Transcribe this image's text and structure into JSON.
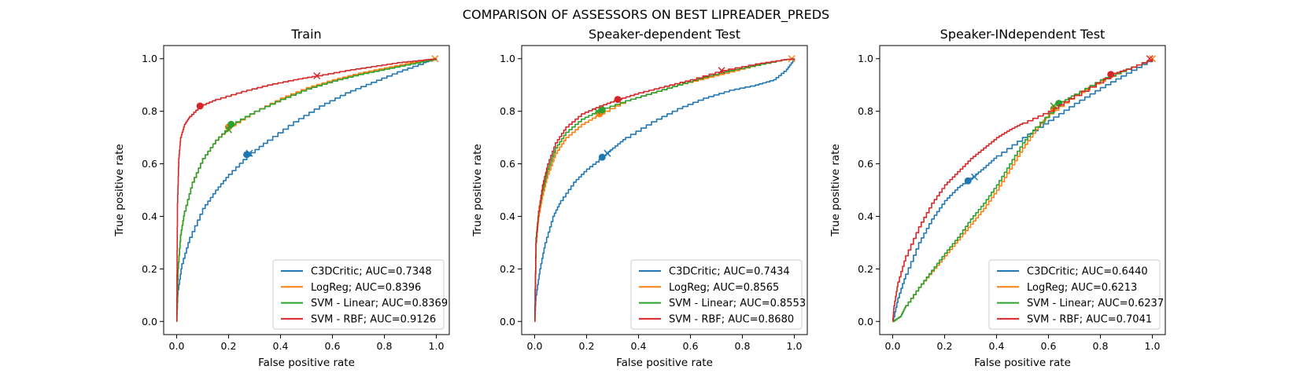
{
  "figure": {
    "suptitle": "COMPARISON OF ASSESSORS ON BEST LIPREADER_PREDS",
    "series_colors": [
      "#1f77b4",
      "#ff7f0e",
      "#2ca02c",
      "#d62728"
    ],
    "x_ticks": [
      "0.0",
      "0.2",
      "0.4",
      "0.6",
      "0.8",
      "1.0"
    ],
    "y_ticks": [
      "0.0",
      "0.2",
      "0.4",
      "0.6",
      "0.8",
      "1.0"
    ]
  },
  "chart_data": [
    {
      "type": "line",
      "title": "Train",
      "xlabel": "False positive rate",
      "ylabel": "True positive rate",
      "xlim": [
        -0.05,
        1.05
      ],
      "ylim": [
        -0.05,
        1.05
      ],
      "legend_position": "lower right",
      "series": [
        {
          "name": "C3DCritic; AUC=0.7348",
          "x": [
            0,
            0.005,
            0.02,
            0.05,
            0.1,
            0.15,
            0.2,
            0.27,
            0.35,
            0.45,
            0.55,
            0.65,
            0.75,
            0.85,
            0.95,
            1.0
          ],
          "y": [
            0,
            0.12,
            0.22,
            0.32,
            0.43,
            0.5,
            0.56,
            0.63,
            0.69,
            0.76,
            0.82,
            0.87,
            0.91,
            0.95,
            0.985,
            1.0
          ],
          "dot": [
            0.27,
            0.635
          ],
          "cross": [
            0.28,
            0.64
          ]
        },
        {
          "name": "LogReg; AUC=0.8396",
          "x": [
            0,
            0.005,
            0.015,
            0.03,
            0.06,
            0.1,
            0.15,
            0.21,
            0.3,
            0.4,
            0.5,
            0.6,
            0.7,
            0.8,
            0.9,
            1.0
          ],
          "y": [
            0,
            0.2,
            0.33,
            0.42,
            0.53,
            0.62,
            0.69,
            0.745,
            0.8,
            0.85,
            0.89,
            0.92,
            0.945,
            0.965,
            0.985,
            1.0
          ],
          "dot": [
            0.2,
            0.74
          ],
          "cross": [
            0.995,
            1.0
          ]
        },
        {
          "name": "SVM - Linear; AUC=0.8369",
          "x": [
            0,
            0.005,
            0.015,
            0.03,
            0.06,
            0.1,
            0.15,
            0.21,
            0.3,
            0.4,
            0.5,
            0.6,
            0.7,
            0.8,
            0.9,
            1.0
          ],
          "y": [
            0,
            0.2,
            0.33,
            0.42,
            0.53,
            0.62,
            0.69,
            0.75,
            0.8,
            0.845,
            0.885,
            0.915,
            0.94,
            0.96,
            0.98,
            1.0
          ],
          "dot": [
            0.21,
            0.75
          ],
          "cross": [
            0.2,
            0.73
          ]
        },
        {
          "name": "SVM - RBF; AUC=0.9126",
          "x": [
            0,
            0.003,
            0.008,
            0.015,
            0.03,
            0.05,
            0.09,
            0.15,
            0.25,
            0.35,
            0.45,
            0.54,
            0.65,
            0.75,
            0.85,
            0.95,
            1.0
          ],
          "y": [
            0,
            0.45,
            0.62,
            0.7,
            0.75,
            0.78,
            0.82,
            0.845,
            0.875,
            0.9,
            0.92,
            0.935,
            0.955,
            0.97,
            0.985,
            0.995,
            1.0
          ],
          "dot": [
            0.09,
            0.82
          ],
          "cross": [
            0.54,
            0.935
          ]
        }
      ]
    },
    {
      "type": "line",
      "title": "Speaker-dependent Test",
      "xlabel": "False positive rate",
      "ylabel": "True positive rate",
      "xlim": [
        -0.05,
        1.05
      ],
      "ylim": [
        -0.05,
        1.05
      ],
      "legend_position": "lower right",
      "series": [
        {
          "name": "C3DCritic; AUC=0.7434",
          "x": [
            0,
            0.005,
            0.02,
            0.04,
            0.07,
            0.1,
            0.15,
            0.2,
            0.26,
            0.3,
            0.35,
            0.45,
            0.55,
            0.65,
            0.75,
            0.85,
            0.92,
            0.97,
            1.0
          ],
          "y": [
            0,
            0.1,
            0.2,
            0.3,
            0.4,
            0.46,
            0.53,
            0.58,
            0.625,
            0.66,
            0.7,
            0.76,
            0.81,
            0.85,
            0.88,
            0.9,
            0.92,
            0.96,
            1.0
          ],
          "dot": [
            0.26,
            0.625
          ],
          "cross": [
            0.28,
            0.64
          ]
        },
        {
          "name": "LogReg; AUC=0.8565",
          "x": [
            0,
            0.005,
            0.015,
            0.03,
            0.05,
            0.08,
            0.12,
            0.18,
            0.25,
            0.35,
            0.45,
            0.55,
            0.65,
            0.75,
            0.85,
            0.95,
            1.0
          ],
          "y": [
            0,
            0.3,
            0.4,
            0.48,
            0.56,
            0.64,
            0.7,
            0.75,
            0.79,
            0.84,
            0.87,
            0.9,
            0.925,
            0.95,
            0.975,
            0.995,
            1.0
          ],
          "dot": [
            0.25,
            0.79
          ],
          "cross": [
            0.99,
            1.0
          ]
        },
        {
          "name": "SVM - Linear; AUC=0.8553",
          "x": [
            0,
            0.005,
            0.015,
            0.03,
            0.05,
            0.08,
            0.12,
            0.18,
            0.25,
            0.35,
            0.45,
            0.55,
            0.65,
            0.75,
            0.85,
            0.95,
            1.0
          ],
          "y": [
            0,
            0.32,
            0.42,
            0.5,
            0.58,
            0.66,
            0.72,
            0.77,
            0.805,
            0.84,
            0.87,
            0.9,
            0.93,
            0.955,
            0.975,
            0.995,
            1.0
          ],
          "dot": [
            0.26,
            0.805
          ],
          "cross": [
            0.24,
            0.8
          ]
        },
        {
          "name": "SVM - RBF; AUC=0.8680",
          "x": [
            0,
            0.005,
            0.015,
            0.03,
            0.05,
            0.08,
            0.12,
            0.18,
            0.25,
            0.32,
            0.4,
            0.5,
            0.6,
            0.72,
            0.85,
            0.95,
            1.0
          ],
          "y": [
            0,
            0.3,
            0.42,
            0.52,
            0.6,
            0.68,
            0.74,
            0.79,
            0.82,
            0.845,
            0.87,
            0.895,
            0.92,
            0.955,
            0.98,
            0.995,
            1.0
          ],
          "dot": [
            0.32,
            0.845
          ],
          "cross": [
            0.72,
            0.955
          ]
        }
      ]
    },
    {
      "type": "line",
      "title": "Speaker-INdependent Test",
      "xlabel": "False positive rate",
      "ylabel": "True positive rate",
      "xlim": [
        -0.05,
        1.05
      ],
      "ylim": [
        -0.05,
        1.05
      ],
      "legend_position": "lower right",
      "series": [
        {
          "name": "C3DCritic; AUC=0.6440",
          "x": [
            0,
            0.02,
            0.05,
            0.1,
            0.15,
            0.2,
            0.25,
            0.3,
            0.35,
            0.4,
            0.5,
            0.6,
            0.7,
            0.8,
            0.9,
            1.0
          ],
          "y": [
            0,
            0.09,
            0.18,
            0.3,
            0.39,
            0.46,
            0.51,
            0.545,
            0.585,
            0.63,
            0.7,
            0.765,
            0.83,
            0.89,
            0.945,
            1.0
          ],
          "dot": [
            0.29,
            0.535
          ],
          "cross": [
            0.315,
            0.55
          ]
        },
        {
          "name": "LogReg; AUC=0.6213",
          "x": [
            0,
            0.03,
            0.05,
            0.1,
            0.15,
            0.2,
            0.25,
            0.3,
            0.35,
            0.4,
            0.45,
            0.5,
            0.55,
            0.6,
            0.7,
            0.8,
            0.9,
            1.0
          ],
          "y": [
            0,
            0.02,
            0.06,
            0.13,
            0.19,
            0.25,
            0.31,
            0.37,
            0.43,
            0.5,
            0.58,
            0.66,
            0.73,
            0.79,
            0.86,
            0.915,
            0.96,
            1.0
          ],
          "dot": [
            0.62,
            0.81
          ],
          "cross": [
            1.0,
            1.0
          ]
        },
        {
          "name": "SVM - Linear; AUC=0.6237",
          "x": [
            0,
            0.03,
            0.05,
            0.1,
            0.15,
            0.2,
            0.25,
            0.3,
            0.35,
            0.4,
            0.45,
            0.5,
            0.55,
            0.64,
            0.7,
            0.8,
            0.9,
            1.0
          ],
          "y": [
            0,
            0.02,
            0.06,
            0.13,
            0.195,
            0.26,
            0.32,
            0.39,
            0.45,
            0.52,
            0.6,
            0.68,
            0.74,
            0.83,
            0.865,
            0.92,
            0.96,
            1.0
          ],
          "dot": [
            0.64,
            0.83
          ],
          "cross": [
            0.62,
            0.82
          ]
        },
        {
          "name": "SVM - RBF; AUC=0.7041",
          "x": [
            0,
            0.005,
            0.02,
            0.05,
            0.1,
            0.15,
            0.2,
            0.25,
            0.3,
            0.35,
            0.4,
            0.45,
            0.5,
            0.6,
            0.7,
            0.84,
            0.9,
            1.0
          ],
          "y": [
            0,
            0.06,
            0.15,
            0.25,
            0.36,
            0.45,
            0.52,
            0.57,
            0.62,
            0.66,
            0.7,
            0.73,
            0.755,
            0.8,
            0.86,
            0.94,
            0.96,
            1.0
          ],
          "dot": [
            0.84,
            0.94
          ],
          "cross": [
            0.99,
            1.0
          ]
        }
      ]
    }
  ]
}
